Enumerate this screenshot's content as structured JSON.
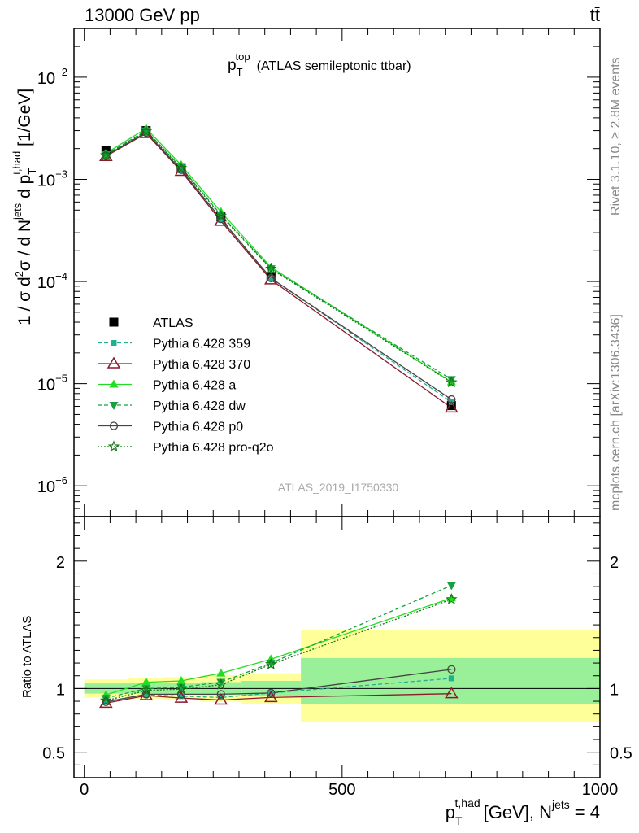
{
  "header": {
    "left": "13000 GeV pp",
    "right": "tt̄"
  },
  "side_text": {
    "top": "Rivet 3.1.10, ≥ 2.8M events",
    "bottom": "mcplots.cern.ch [arXiv:1306.3436]"
  },
  "chart_data": [
    {
      "type": "line",
      "title": {
        "main": "p",
        "sup": "top",
        "sub": "T",
        "rest": "(ATLAS semileptonic ttbar)"
      },
      "watermark": "ATLAS_2019_I1750330",
      "ylabel": "1 / σ d²σ / d N^jets d p_T^t,had [1/GeV]",
      "yscale": "log",
      "ylim": [
        5e-07,
        0.03
      ],
      "xlim": [
        -20,
        1000
      ],
      "yticks": [
        {
          "v": 1e-06,
          "base": "10",
          "exp": "−6"
        },
        {
          "v": 1e-05,
          "base": "10",
          "exp": "−5"
        },
        {
          "v": 0.0001,
          "base": "10",
          "exp": "−4"
        },
        {
          "v": 0.001,
          "base": "10",
          "exp": "−3"
        },
        {
          "v": 0.01,
          "base": "10",
          "exp": "−2"
        }
      ],
      "x": [
        42,
        120,
        188,
        265,
        362,
        712
      ],
      "data": {
        "name": "ATLAS",
        "values": [
          0.0019,
          0.003,
          0.0013,
          0.00043,
          0.000112,
          6.1e-06
        ]
      },
      "series": [
        {
          "name": "Pythia 6.428 359",
          "color": "#20b090",
          "dash": "5,3",
          "marker": "square-small",
          "values": [
            0.00172,
            0.00285,
            0.00122,
            0.0004,
            0.000108,
            6.6e-06
          ]
        },
        {
          "name": "Pythia 6.428 370",
          "color": "#8b1a2b",
          "dash": "",
          "marker": "triangle-open",
          "values": [
            0.00168,
            0.00282,
            0.0012,
            0.00039,
            0.000104,
            5.8e-06
          ]
        },
        {
          "name": "Pythia 6.428 a",
          "color": "#22dd22",
          "dash": "",
          "marker": "triangle-up",
          "values": [
            0.0018,
            0.00315,
            0.00138,
            0.00048,
            0.000138,
            1.04e-05
          ]
        },
        {
          "name": "Pythia 6.428 dw",
          "color": "#16a040",
          "dash": "5,3",
          "marker": "triangle-down",
          "values": [
            0.00175,
            0.003,
            0.00131,
            0.00045,
            0.000134,
            1.1e-05
          ]
        },
        {
          "name": "Pythia 6.428 p0",
          "color": "#444444",
          "dash": "",
          "marker": "circle-open",
          "values": [
            0.0017,
            0.00287,
            0.00124,
            0.00041,
            0.000108,
            7e-06
          ]
        },
        {
          "name": "Pythia 6.428 pro-q2o",
          "color": "#117711",
          "dash": "2,2",
          "marker": "star-open",
          "values": [
            0.00172,
            0.00295,
            0.00129,
            0.00044,
            0.000133,
            1.03e-05
          ]
        }
      ]
    },
    {
      "type": "line",
      "ylabel": "Ratio to ATLAS",
      "ylim": [
        0.3,
        2.35
      ],
      "xlim": [
        -20,
        1000
      ],
      "xticks": [
        0,
        500,
        1000
      ],
      "yticks": [
        0.5,
        1,
        2
      ],
      "xlabel": {
        "p": "p",
        "sup": "t,had",
        "sub": "T",
        "mid": "[GeV], N",
        "sup2": "jets",
        "end": "= 4"
      },
      "bins": [
        {
          "lo": 0,
          "hi": 85,
          "stat": [
            0.96,
            1.04
          ],
          "tot": [
            0.93,
            1.07
          ]
        },
        {
          "lo": 85,
          "hi": 155,
          "stat": [
            0.96,
            1.04
          ],
          "tot": [
            0.92,
            1.08
          ]
        },
        {
          "lo": 155,
          "hi": 225,
          "stat": [
            0.955,
            1.045
          ],
          "tot": [
            0.91,
            1.09
          ]
        },
        {
          "lo": 225,
          "hi": 305,
          "stat": [
            0.95,
            1.05
          ],
          "tot": [
            0.895,
            1.105
          ]
        },
        {
          "lo": 305,
          "hi": 420,
          "stat": [
            0.94,
            1.06
          ],
          "tot": [
            0.88,
            1.12
          ]
        },
        {
          "lo": 420,
          "hi": 1000,
          "stat": [
            0.88,
            1.24
          ],
          "tot": [
            0.74,
            1.46
          ]
        }
      ],
      "series": [
        {
          "name": "Pythia 6.428 359",
          "values": [
            0.9,
            0.95,
            0.94,
            0.93,
            0.965,
            1.08
          ]
        },
        {
          "name": "Pythia 6.428 370",
          "values": [
            0.885,
            0.945,
            0.925,
            0.91,
            0.93,
            0.96
          ]
        },
        {
          "name": "Pythia 6.428 a",
          "values": [
            0.95,
            1.05,
            1.06,
            1.12,
            1.23,
            1.71
          ]
        },
        {
          "name": "Pythia 6.428 dw",
          "values": [
            0.925,
            1.0,
            1.01,
            1.05,
            1.2,
            1.81
          ]
        },
        {
          "name": "Pythia 6.428 p0",
          "values": [
            0.895,
            0.955,
            0.955,
            0.955,
            0.965,
            1.15
          ]
        },
        {
          "name": "Pythia 6.428 pro-q2o",
          "values": [
            0.905,
            0.985,
            0.995,
            1.03,
            1.19,
            1.7
          ]
        }
      ]
    }
  ]
}
